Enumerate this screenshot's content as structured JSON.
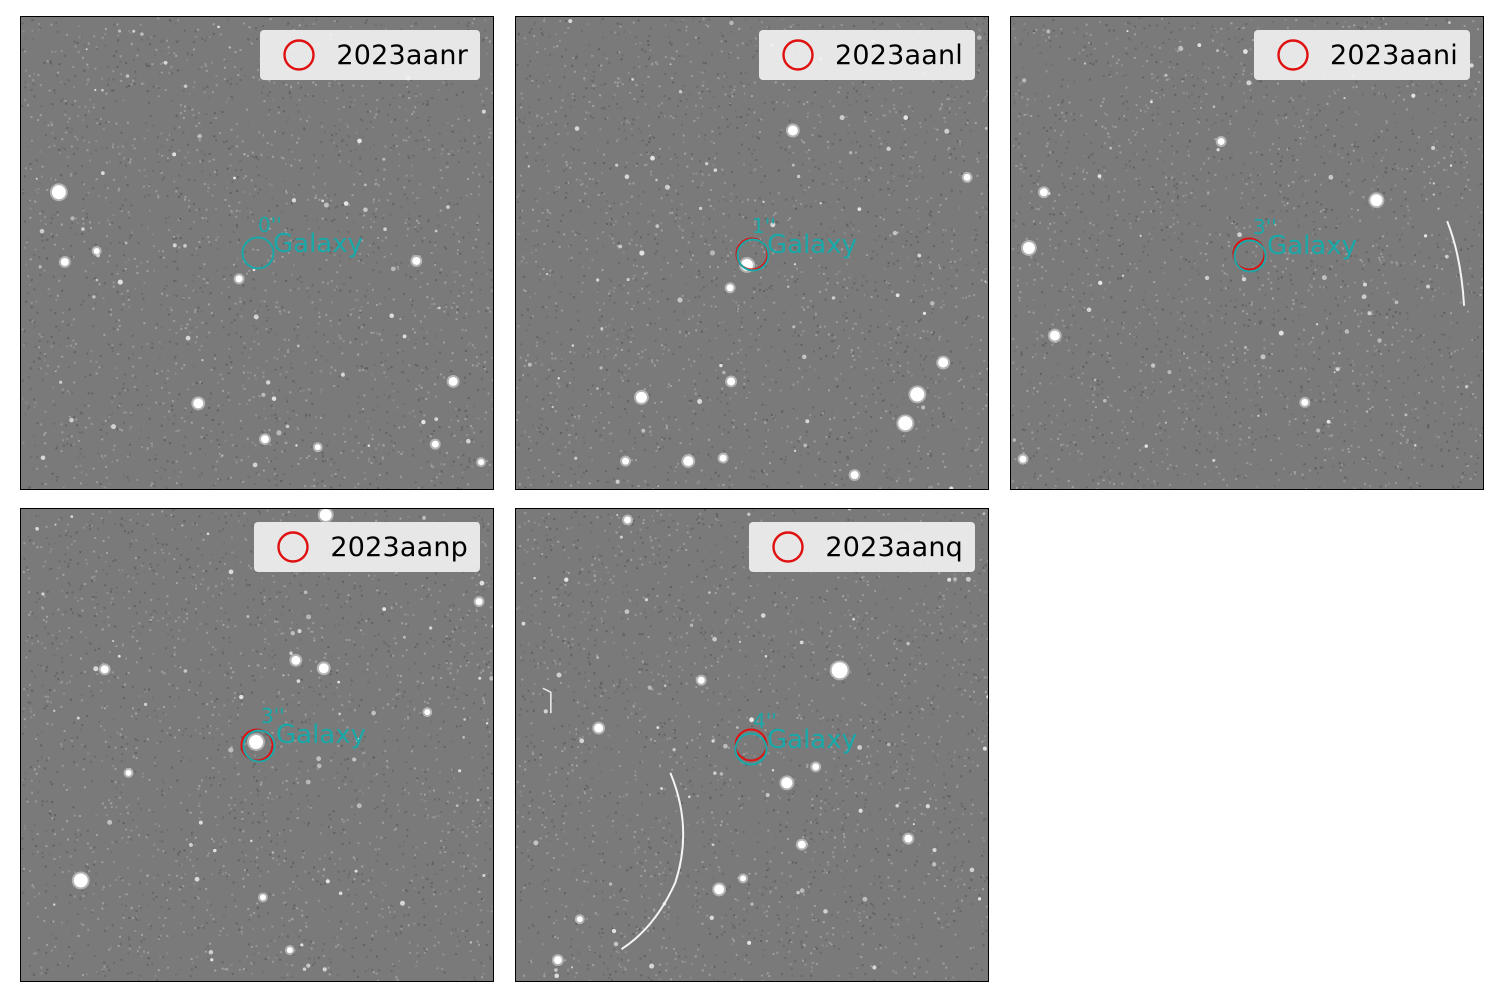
{
  "panels": [
    {
      "name": "2023aanr",
      "separation": "0''",
      "host_label": "Galaxy"
    },
    {
      "name": "2023aanl",
      "separation": "1''",
      "host_label": "Galaxy"
    },
    {
      "name": "2023aani",
      "separation": "3''",
      "host_label": "Galaxy"
    },
    {
      "name": "2023aanp",
      "separation": "3''",
      "host_label": "Galaxy"
    },
    {
      "name": "2023aanq",
      "separation": "4''",
      "host_label": "Galaxy"
    }
  ],
  "colors": {
    "transient_marker": "#e01010",
    "host_marker": "#1aa8a8",
    "sky_background": "#7a7a7a",
    "legend_background": "#f0f0f0"
  }
}
